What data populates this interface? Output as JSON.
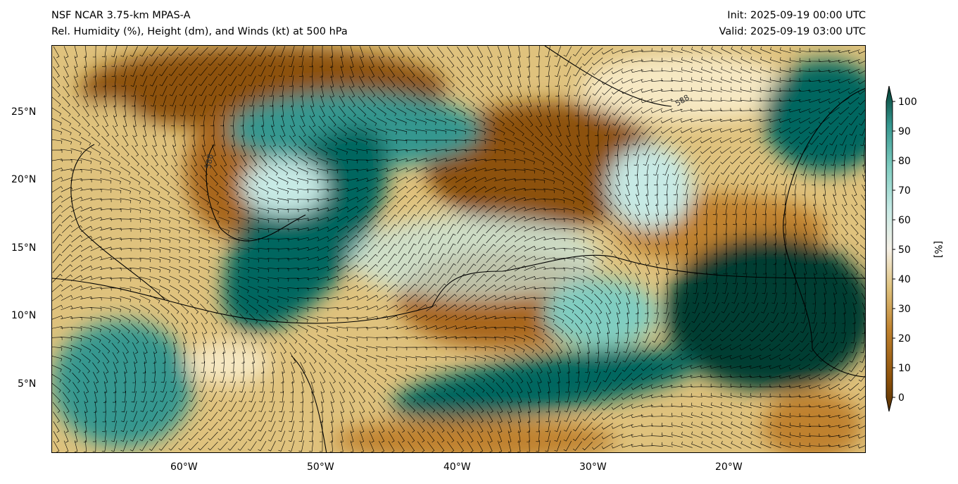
{
  "header": {
    "title_left_line1": "NSF NCAR 3.75-km MPAS-A",
    "title_left_line2": "Rel. Humidity (%), Height (dm), and Winds (kt) at 500 hPa",
    "init": "Init: 2025-09-19 00:00 UTC",
    "valid": "Valid: 2025-09-19 03:00 UTC"
  },
  "axes": {
    "lat_labels": [
      "25°N",
      "20°N",
      "15°N",
      "10°N",
      "5°N"
    ],
    "lon_labels": [
      "60°W",
      "50°W",
      "40°W",
      "30°W",
      "20°W"
    ],
    "contour_label": "588"
  },
  "colorbar": {
    "label": "[%]",
    "ticks": [
      "100",
      "90",
      "80",
      "70",
      "60",
      "50",
      "40",
      "30",
      "20",
      "10",
      "0"
    ],
    "colors": {
      "low": "#543005",
      "mid": "#f5f0e6",
      "high": "#003c30"
    }
  }
}
